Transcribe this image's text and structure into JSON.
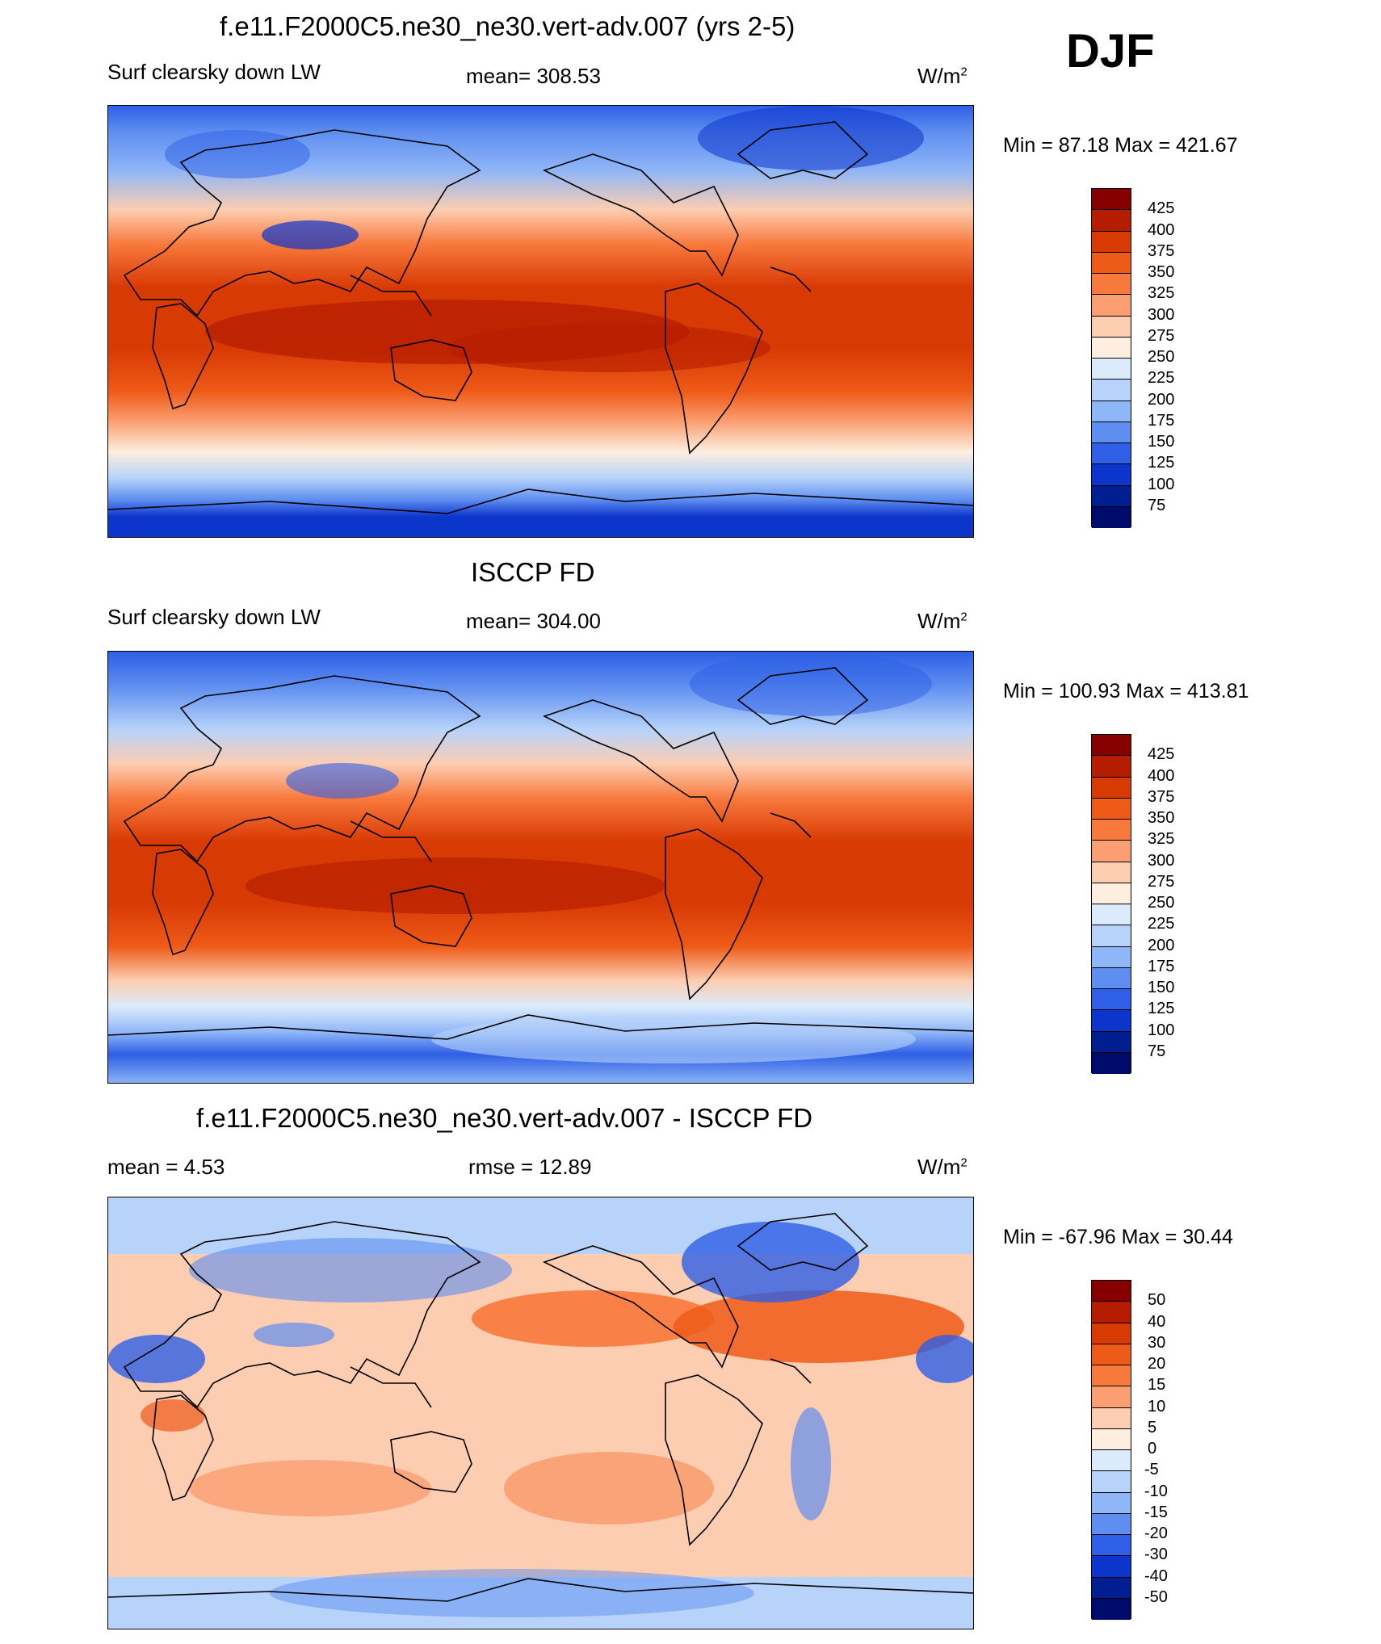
{
  "season": "DJF",
  "panels": [
    {
      "title": "f.e11.F2000C5.ne30_ne30.vert-adv.007 (yrs 2-5)",
      "left_text": "Surf clearsky down LW",
      "center_text": "mean= 308.53",
      "unit_base": "W/m",
      "unit_sup": "2",
      "minmax": "Min =  87.18 Max = 421.67",
      "levels": [
        "425",
        "400",
        "375",
        "350",
        "325",
        "300",
        "275",
        "250",
        "225",
        "200",
        "175",
        "150",
        "125",
        "100",
        "75"
      ],
      "colors": [
        "#870000",
        "#b51d00",
        "#d83a04",
        "#ee5a18",
        "#f8793c",
        "#fb9f72",
        "#fdcdb1",
        "#fdeedf",
        "#dbebfb",
        "#b7d3fa",
        "#8fb6f7",
        "#5e8ef0",
        "#2e5fe6",
        "#0c35cc",
        "#001e8f",
        "#000a6b"
      ]
    },
    {
      "title": "ISCCP FD",
      "left_text": "Surf clearsky down LW",
      "center_text": "mean= 304.00",
      "unit_base": "W/m",
      "unit_sup": "2",
      "minmax": "Min = 100.93 Max = 413.81",
      "levels": [
        "425",
        "400",
        "375",
        "350",
        "325",
        "300",
        "275",
        "250",
        "225",
        "200",
        "175",
        "150",
        "125",
        "100",
        "75"
      ],
      "colors": [
        "#870000",
        "#b51d00",
        "#d83a04",
        "#ee5a18",
        "#f8793c",
        "#fb9f72",
        "#fdcdb1",
        "#fdeedf",
        "#dbebfb",
        "#b7d3fa",
        "#8fb6f7",
        "#5e8ef0",
        "#2e5fe6",
        "#0c35cc",
        "#001e8f",
        "#000a6b"
      ]
    },
    {
      "title": "f.e11.F2000C5.ne30_ne30.vert-adv.007 - ISCCP FD",
      "left_text": "mean =   4.53",
      "center_text": "rmse =  12.89",
      "unit_base": "W/m",
      "unit_sup": "2",
      "minmax": "Min = -67.96 Max =  30.44",
      "levels": [
        "50",
        "40",
        "30",
        "20",
        "15",
        "10",
        "5",
        "0",
        "-5",
        "-10",
        "-15",
        "-20",
        "-30",
        "-40",
        "-50"
      ],
      "colors": [
        "#870000",
        "#b51d00",
        "#d83a04",
        "#ee5a18",
        "#f8793c",
        "#fb9f72",
        "#fdcdb1",
        "#fdeedf",
        "#dbebfb",
        "#b7d3fa",
        "#8fb6f7",
        "#5e8ef0",
        "#2e5fe6",
        "#0c35cc",
        "#001e8f",
        "#000a6b"
      ]
    }
  ]
}
